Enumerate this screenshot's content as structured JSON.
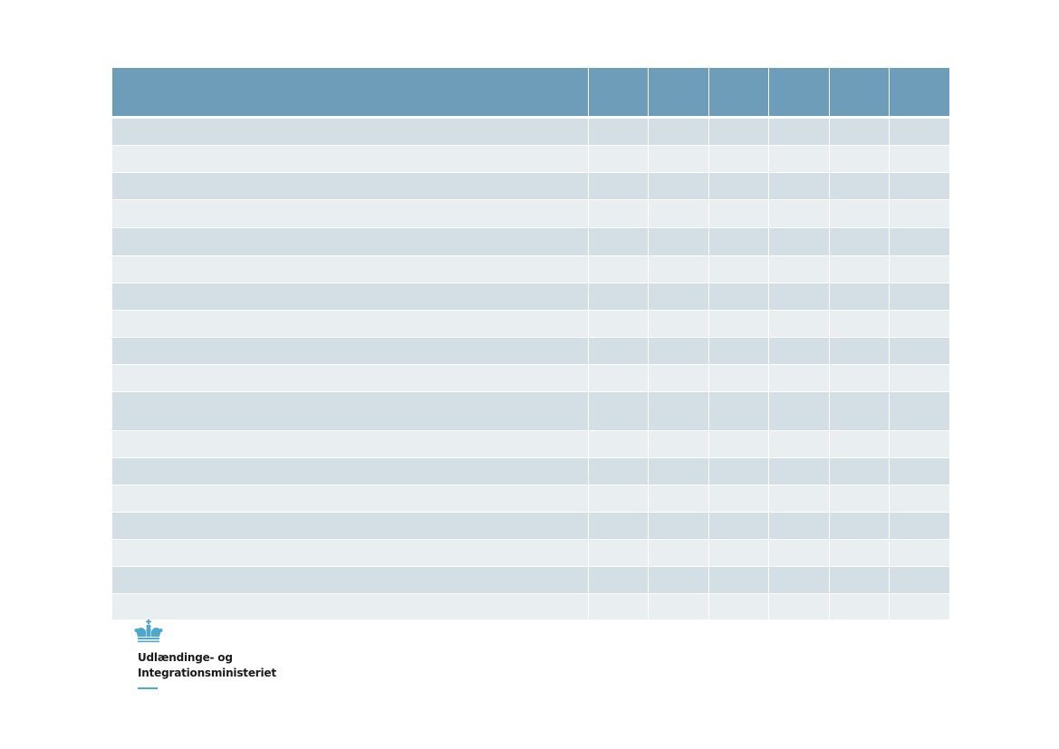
{
  "colors": {
    "header": "#6d9db8",
    "row_dark": "#d4dfe5",
    "row_light": "#e9eef1",
    "brand": "#4fa8cc",
    "logo_text": "#1b1b1b"
  },
  "logo": {
    "icon": "crown-icon",
    "line1": "Udlændinge- og",
    "line2": "Integrationsministeriet"
  }
}
